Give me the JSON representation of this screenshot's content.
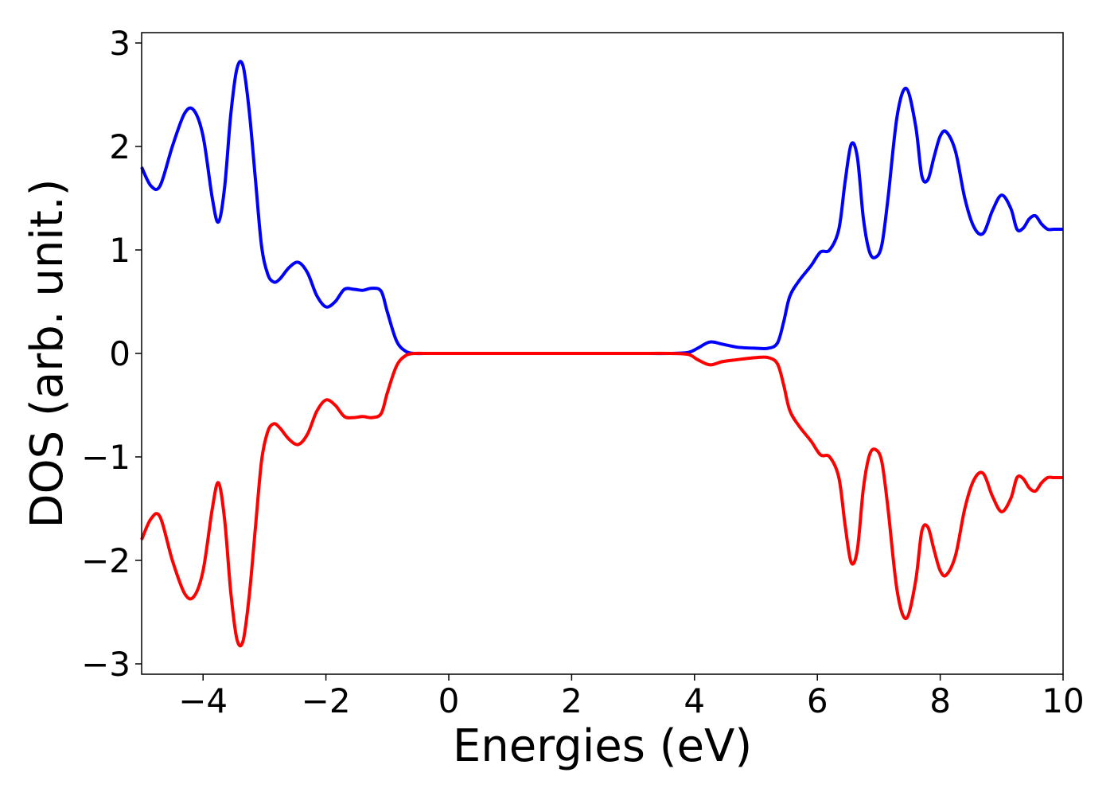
{
  "chart_data": {
    "type": "line",
    "title": "",
    "xlabel": "Energies (eV)",
    "ylabel": "DOS (arb. unit.)",
    "xlim": [
      -5,
      10
    ],
    "ylim": [
      -3.1,
      3.1
    ],
    "grid": false,
    "x_ticks": [
      -4,
      -2,
      0,
      2,
      4,
      6,
      8,
      10
    ],
    "x_tick_labels": [
      "−4",
      "−2",
      "0",
      "2",
      "4",
      "6",
      "8",
      "10"
    ],
    "y_ticks": [
      -3,
      -2,
      -1,
      0,
      1,
      2,
      3
    ],
    "y_tick_labels": [
      "−3",
      "−2",
      "−1",
      "0",
      "1",
      "2",
      "3"
    ],
    "series": [
      {
        "color": "#0000ff",
        "x": [
          -5.0,
          -4.85,
          -4.7,
          -4.5,
          -4.3,
          -4.15,
          -4.0,
          -3.85,
          -3.75,
          -3.65,
          -3.55,
          -3.45,
          -3.35,
          -3.25,
          -3.15,
          -3.05,
          -2.95,
          -2.85,
          -2.75,
          -2.6,
          -2.45,
          -2.3,
          -2.15,
          -2.0,
          -1.85,
          -1.7,
          -1.55,
          -1.4,
          -1.25,
          -1.1,
          -1.0,
          -0.85,
          -0.7,
          -0.55,
          -0.4,
          -0.2,
          0.0,
          1.0,
          2.0,
          3.0,
          3.6,
          3.9,
          4.05,
          4.25,
          4.45,
          4.7,
          5.0,
          5.2,
          5.35,
          5.45,
          5.55,
          5.7,
          5.9,
          6.05,
          6.2,
          6.35,
          6.45,
          6.55,
          6.65,
          6.75,
          6.85,
          6.95,
          7.05,
          7.15,
          7.3,
          7.45,
          7.6,
          7.7,
          7.8,
          7.9,
          8.0,
          8.1,
          8.25,
          8.4,
          8.55,
          8.7,
          8.85,
          9.0,
          9.15,
          9.25,
          9.35,
          9.45,
          9.55,
          9.65,
          9.75,
          9.85,
          10.0
        ],
        "y": [
          1.8,
          1.62,
          1.62,
          2.0,
          2.32,
          2.35,
          2.1,
          1.5,
          1.27,
          1.6,
          2.3,
          2.75,
          2.78,
          2.35,
          1.7,
          1.05,
          0.77,
          0.69,
          0.72,
          0.83,
          0.88,
          0.78,
          0.56,
          0.45,
          0.5,
          0.62,
          0.62,
          0.61,
          0.63,
          0.6,
          0.4,
          0.12,
          0.02,
          0.0,
          0.0,
          0.0,
          0.0,
          0.0,
          0.0,
          0.0,
          0.0,
          0.01,
          0.05,
          0.11,
          0.09,
          0.06,
          0.05,
          0.05,
          0.1,
          0.3,
          0.55,
          0.7,
          0.85,
          0.98,
          1.0,
          1.2,
          1.65,
          2.02,
          1.9,
          1.3,
          0.98,
          0.93,
          1.05,
          1.5,
          2.3,
          2.56,
          2.2,
          1.72,
          1.68,
          1.9,
          2.1,
          2.14,
          1.95,
          1.5,
          1.22,
          1.16,
          1.38,
          1.53,
          1.4,
          1.2,
          1.21,
          1.3,
          1.33,
          1.25,
          1.2,
          1.2,
          1.2
        ]
      },
      {
        "color": "#ff0000",
        "x": [
          -5.0,
          -4.85,
          -4.7,
          -4.5,
          -4.3,
          -4.15,
          -4.0,
          -3.85,
          -3.75,
          -3.65,
          -3.55,
          -3.45,
          -3.35,
          -3.25,
          -3.15,
          -3.05,
          -2.95,
          -2.85,
          -2.75,
          -2.6,
          -2.45,
          -2.3,
          -2.15,
          -2.0,
          -1.85,
          -1.7,
          -1.55,
          -1.4,
          -1.25,
          -1.1,
          -1.0,
          -0.85,
          -0.7,
          -0.55,
          -0.4,
          -0.2,
          0.0,
          1.0,
          2.0,
          3.0,
          3.6,
          3.9,
          4.05,
          4.25,
          4.45,
          4.7,
          5.0,
          5.2,
          5.35,
          5.45,
          5.55,
          5.7,
          5.9,
          6.05,
          6.2,
          6.35,
          6.45,
          6.55,
          6.65,
          6.75,
          6.85,
          6.95,
          7.05,
          7.15,
          7.3,
          7.45,
          7.6,
          7.7,
          7.8,
          7.9,
          8.0,
          8.1,
          8.25,
          8.4,
          8.55,
          8.7,
          8.85,
          9.0,
          9.15,
          9.25,
          9.35,
          9.45,
          9.55,
          9.65,
          9.75,
          9.85,
          10.0
        ],
        "y": [
          -1.8,
          -1.6,
          -1.58,
          -2.0,
          -2.32,
          -2.35,
          -2.1,
          -1.5,
          -1.25,
          -1.6,
          -2.3,
          -2.76,
          -2.78,
          -2.35,
          -1.7,
          -1.05,
          -0.76,
          -0.68,
          -0.72,
          -0.83,
          -0.88,
          -0.78,
          -0.56,
          -0.45,
          -0.5,
          -0.61,
          -0.62,
          -0.61,
          -0.62,
          -0.58,
          -0.38,
          -0.12,
          -0.02,
          0.0,
          0.0,
          0.0,
          0.0,
          0.0,
          0.0,
          0.0,
          0.0,
          -0.01,
          -0.06,
          -0.11,
          -0.08,
          -0.06,
          -0.04,
          -0.04,
          -0.1,
          -0.3,
          -0.55,
          -0.7,
          -0.85,
          -0.98,
          -1.0,
          -1.2,
          -1.65,
          -2.02,
          -1.9,
          -1.3,
          -0.98,
          -0.93,
          -1.05,
          -1.5,
          -2.3,
          -2.56,
          -2.2,
          -1.72,
          -1.68,
          -1.9,
          -2.1,
          -2.14,
          -1.95,
          -1.5,
          -1.22,
          -1.16,
          -1.38,
          -1.53,
          -1.4,
          -1.2,
          -1.21,
          -1.3,
          -1.33,
          -1.25,
          -1.2,
          -1.2,
          -1.2
        ]
      }
    ]
  }
}
